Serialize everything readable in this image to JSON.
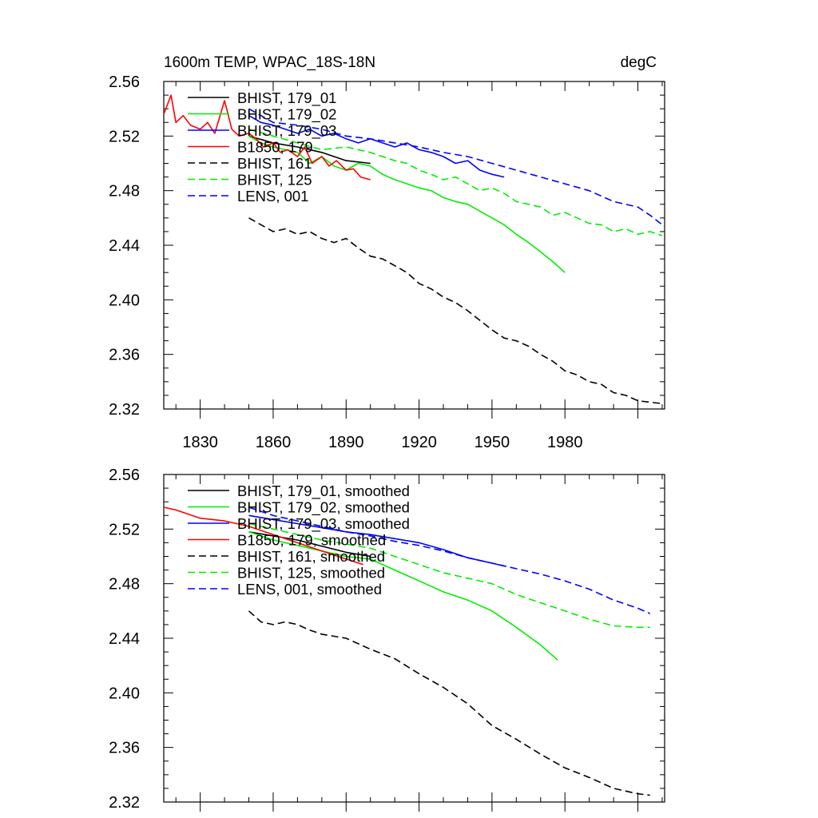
{
  "chart_data": [
    {
      "type": "line",
      "title_left": "1600m TEMP, WPAC_18S-18N",
      "title_right": "degC",
      "xlim": [
        1815,
        2021
      ],
      "ylim": [
        2.32,
        2.56
      ],
      "xticks": [
        1830,
        1860,
        1890,
        1920,
        1950,
        1980
      ],
      "yticks": [
        2.32,
        2.36,
        2.4,
        2.44,
        2.48,
        2.52,
        2.56
      ],
      "ytick_labels": [
        "2.32",
        "2.36",
        "2.40",
        "2.44",
        "2.48",
        "2.52",
        "2.56"
      ],
      "legend_position": "top-left",
      "series": [
        {
          "name": "BHIST, 179_01",
          "color": "#000000",
          "dash": "solid",
          "x": [
            1850,
            1860,
            1870,
            1880,
            1890,
            1900
          ],
          "y": [
            2.52,
            2.515,
            2.512,
            2.508,
            2.502,
            2.5
          ]
        },
        {
          "name": "BHIST, 179_02",
          "color": "#00ee00",
          "dash": "solid",
          "x": [
            1850,
            1855,
            1860,
            1865,
            1870,
            1875,
            1880,
            1885,
            1890,
            1895,
            1900,
            1905,
            1910,
            1915,
            1920,
            1925,
            1930,
            1935,
            1940,
            1945,
            1950,
            1955,
            1960,
            1965,
            1970,
            1975,
            1980
          ],
          "y": [
            2.52,
            2.515,
            2.512,
            2.51,
            2.508,
            2.5,
            2.505,
            2.498,
            2.495,
            2.5,
            2.498,
            2.492,
            2.488,
            2.485,
            2.482,
            2.48,
            2.475,
            2.472,
            2.47,
            2.465,
            2.46,
            2.455,
            2.448,
            2.442,
            2.435,
            2.428,
            2.42
          ]
        },
        {
          "name": "BHIST, 179_03",
          "color": "#0000ff",
          "dash": "solid",
          "x": [
            1850,
            1855,
            1860,
            1865,
            1870,
            1875,
            1880,
            1885,
            1890,
            1895,
            1900,
            1905,
            1910,
            1915,
            1920,
            1925,
            1930,
            1935,
            1940,
            1945,
            1950,
            1955
          ],
          "y": [
            2.535,
            2.53,
            2.528,
            2.525,
            2.522,
            2.525,
            2.52,
            2.522,
            2.518,
            2.515,
            2.518,
            2.515,
            2.512,
            2.515,
            2.51,
            2.508,
            2.505,
            2.5,
            2.502,
            2.495,
            2.492,
            2.49
          ]
        },
        {
          "name": "B1850, 179",
          "color": "#ff0000",
          "dash": "solid",
          "x": [
            1815,
            1818,
            1820,
            1823,
            1826,
            1830,
            1833,
            1836,
            1840,
            1843,
            1846,
            1850,
            1853,
            1856,
            1860,
            1863,
            1866,
            1870,
            1873,
            1876,
            1880,
            1883,
            1886,
            1890,
            1893,
            1896,
            1900
          ],
          "y": [
            2.536,
            2.55,
            2.53,
            2.535,
            2.528,
            2.525,
            2.53,
            2.522,
            2.546,
            2.525,
            2.52,
            2.522,
            2.518,
            2.512,
            2.515,
            2.508,
            2.51,
            2.505,
            2.512,
            2.5,
            2.505,
            2.498,
            2.502,
            2.495,
            2.496,
            2.49,
            2.488
          ]
        },
        {
          "name": "BHIST, 161",
          "color": "#000000",
          "dash": "dashed",
          "x": [
            1850,
            1855,
            1860,
            1865,
            1870,
            1875,
            1880,
            1885,
            1890,
            1895,
            1900,
            1905,
            1910,
            1915,
            1920,
            1925,
            1930,
            1935,
            1940,
            1945,
            1950,
            1955,
            1960,
            1965,
            1970,
            1975,
            1980,
            1985,
            1990,
            1995,
            2000,
            2005,
            2010,
            2015,
            2020
          ],
          "y": [
            2.46,
            2.455,
            2.45,
            2.452,
            2.448,
            2.45,
            2.445,
            2.442,
            2.445,
            2.438,
            2.432,
            2.43,
            2.425,
            2.42,
            2.412,
            2.408,
            2.402,
            2.398,
            2.392,
            2.385,
            2.378,
            2.372,
            2.37,
            2.366,
            2.36,
            2.355,
            2.348,
            2.345,
            2.34,
            2.338,
            2.332,
            2.33,
            2.326,
            2.325,
            2.324
          ]
        },
        {
          "name": "BHIST, 125",
          "color": "#00ee00",
          "dash": "dashed",
          "x": [
            1850,
            1860,
            1870,
            1880,
            1890,
            1900,
            1905,
            1910,
            1915,
            1920,
            1925,
            1930,
            1935,
            1940,
            1945,
            1950,
            1955,
            1960,
            1965,
            1970,
            1975,
            1980,
            1985,
            1990,
            1995,
            2000,
            2005,
            2010,
            2015,
            2020
          ],
          "y": [
            2.525,
            2.52,
            2.515,
            2.51,
            2.512,
            2.508,
            2.505,
            2.502,
            2.5,
            2.495,
            2.492,
            2.488,
            2.49,
            2.485,
            2.48,
            2.482,
            2.478,
            2.472,
            2.47,
            2.468,
            2.462,
            2.464,
            2.46,
            2.456,
            2.455,
            2.45,
            2.452,
            2.448,
            2.45,
            2.447
          ]
        },
        {
          "name": "LENS, 001",
          "color": "#0000ff",
          "dash": "dashed",
          "x": [
            1850,
            1860,
            1870,
            1880,
            1890,
            1900,
            1910,
            1920,
            1930,
            1940,
            1950,
            1960,
            1970,
            1980,
            1990,
            2000,
            2010,
            2015,
            2020
          ],
          "y": [
            2.54,
            2.53,
            2.528,
            2.525,
            2.52,
            2.518,
            2.515,
            2.512,
            2.508,
            2.505,
            2.5,
            2.495,
            2.49,
            2.485,
            2.48,
            2.472,
            2.468,
            2.462,
            2.455
          ]
        }
      ]
    },
    {
      "type": "line",
      "xlim": [
        1815,
        2021
      ],
      "ylim": [
        2.32,
        2.56
      ],
      "xticks": [
        1830,
        1860,
        1890,
        1920,
        1950,
        1980
      ],
      "yticks": [
        2.32,
        2.36,
        2.4,
        2.44,
        2.48,
        2.52,
        2.56
      ],
      "ytick_labels": [
        "2.32",
        "2.36",
        "2.40",
        "2.44",
        "2.48",
        "2.52",
        "2.56"
      ],
      "legend_position": "top-left",
      "series": [
        {
          "name": "BHIST, 179_01, smoothed",
          "color": "#000000",
          "dash": "solid",
          "x": [
            1850,
            1870,
            1890,
            1900
          ],
          "y": [
            2.518,
            2.512,
            2.503,
            2.5
          ]
        },
        {
          "name": "BHIST, 179_02, smoothed",
          "color": "#00ee00",
          "dash": "solid",
          "x": [
            1850,
            1860,
            1870,
            1880,
            1890,
            1900,
            1910,
            1920,
            1930,
            1940,
            1950,
            1960,
            1970,
            1977
          ],
          "y": [
            2.518,
            2.512,
            2.508,
            2.504,
            2.5,
            2.498,
            2.49,
            2.482,
            2.474,
            2.468,
            2.46,
            2.448,
            2.435,
            2.424
          ]
        },
        {
          "name": "BHIST, 179_03, smoothed",
          "color": "#0000ff",
          "dash": "solid",
          "x": [
            1850,
            1860,
            1870,
            1880,
            1890,
            1900,
            1910,
            1920,
            1930,
            1940,
            1950,
            1955
          ],
          "y": [
            2.53,
            2.527,
            2.524,
            2.521,
            2.518,
            2.516,
            2.513,
            2.51,
            2.505,
            2.499,
            2.495,
            2.493
          ]
        },
        {
          "name": "B1850, 179, smoothed",
          "color": "#ff0000",
          "dash": "solid",
          "x": [
            1815,
            1820,
            1830,
            1840,
            1850,
            1860,
            1870,
            1880,
            1890,
            1897
          ],
          "y": [
            2.536,
            2.534,
            2.528,
            2.526,
            2.522,
            2.516,
            2.51,
            2.504,
            2.498,
            2.494
          ]
        },
        {
          "name": "BHIST, 161, smoothed",
          "color": "#000000",
          "dash": "dashed",
          "x": [
            1850,
            1855,
            1860,
            1865,
            1870,
            1875,
            1880,
            1890,
            1900,
            1910,
            1920,
            1930,
            1940,
            1950,
            1960,
            1970,
            1980,
            1990,
            2000,
            2010,
            2015
          ],
          "y": [
            2.46,
            2.452,
            2.45,
            2.452,
            2.45,
            2.446,
            2.443,
            2.44,
            2.432,
            2.425,
            2.414,
            2.404,
            2.392,
            2.376,
            2.366,
            2.355,
            2.345,
            2.338,
            2.33,
            2.326,
            2.325
          ]
        },
        {
          "name": "BHIST, 125, smoothed",
          "color": "#00ee00",
          "dash": "dashed",
          "x": [
            1850,
            1860,
            1870,
            1880,
            1890,
            1900,
            1910,
            1920,
            1930,
            1940,
            1950,
            1960,
            1970,
            1980,
            1990,
            2000,
            2010,
            2015
          ],
          "y": [
            2.524,
            2.52,
            2.516,
            2.512,
            2.509,
            2.506,
            2.5,
            2.494,
            2.488,
            2.484,
            2.48,
            2.472,
            2.466,
            2.46,
            2.454,
            2.449,
            2.448,
            2.448
          ]
        },
        {
          "name": "LENS, 001, smoothed",
          "color": "#0000ff",
          "dash": "dashed",
          "x": [
            1850,
            1860,
            1870,
            1880,
            1890,
            1900,
            1910,
            1920,
            1930,
            1940,
            1950,
            1960,
            1970,
            1980,
            1990,
            2000,
            2010,
            2015
          ],
          "y": [
            2.536,
            2.53,
            2.526,
            2.522,
            2.518,
            2.515,
            2.511,
            2.508,
            2.504,
            2.499,
            2.495,
            2.491,
            2.487,
            2.482,
            2.476,
            2.468,
            2.462,
            2.458
          ]
        }
      ]
    }
  ]
}
